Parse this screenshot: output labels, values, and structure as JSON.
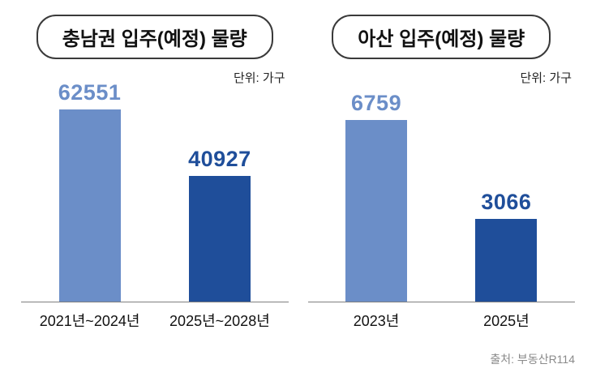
{
  "source": "출처: 부동산R114",
  "chart_data": [
    {
      "type": "bar",
      "title": "충남권 입주(예정) 물량",
      "unit_label": "단위: 가구",
      "categories": [
        "2021년~2024년",
        "2025년~2028년"
      ],
      "values": [
        62551,
        40927
      ],
      "ylim": [
        0,
        70000
      ],
      "bar_colors": [
        "#6b8ec8",
        "#1f4e9a"
      ],
      "grid": false,
      "legend": false
    },
    {
      "type": "bar",
      "title": "아산 입주(예정) 물량",
      "unit_label": "단위: 가구",
      "categories": [
        "2023년",
        "2025년"
      ],
      "values": [
        6759,
        3066
      ],
      "ylim": [
        0,
        8000
      ],
      "bar_colors": [
        "#6b8ec8",
        "#1f4e9a"
      ],
      "grid": false,
      "legend": false
    }
  ]
}
